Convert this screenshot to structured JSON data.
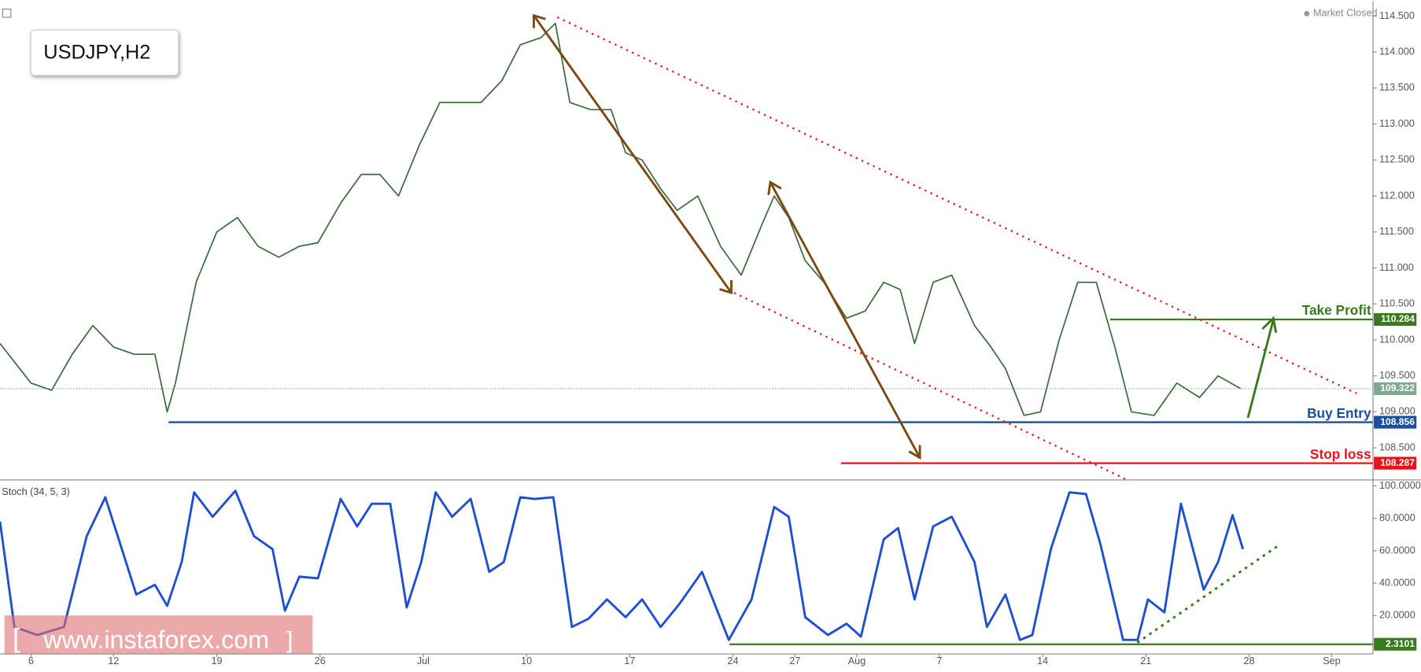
{
  "watermark": "www.instaforex.com",
  "chart_data": [
    {
      "type": "line",
      "title": "USDJPY,H2",
      "status": "Market Closed",
      "color": "#3d6b3d",
      "x": [
        -1.5,
        0,
        1.0,
        2.0,
        3.0,
        4.0,
        5.0,
        6.0,
        6.6,
        7.0,
        8.0,
        9.0,
        10.0,
        11.0,
        12.0,
        13.0,
        13.9,
        15.0,
        16.0,
        16.9,
        17.8,
        18.8,
        19.8,
        20.8,
        21.8,
        22.8,
        23.7,
        24.7,
        25.4,
        26.1,
        27.1,
        28.1,
        28.8,
        29.6,
        30.5,
        31.3,
        32.3,
        33.4,
        34.4,
        35.4,
        36.0,
        36.7,
        37.5,
        38.4,
        39.5,
        40.4,
        41.3,
        42.1,
        42.8,
        43.7,
        44.6,
        45.7,
        46.5,
        47.2,
        48.1,
        48.9,
        49.8,
        50.7,
        51.6,
        52.5,
        53.3,
        54.4,
        55.5,
        56.6,
        57.5,
        58.6
      ],
      "series": [
        {
          "name": "USDJPY",
          "color": "#3d6b3d",
          "values": [
            109.95,
            109.4,
            109.3,
            109.8,
            110.2,
            109.9,
            109.8,
            109.8,
            109.0,
            109.4,
            110.8,
            111.5,
            111.7,
            111.3,
            111.15,
            111.3,
            111.35,
            111.9,
            112.3,
            112.3,
            112.0,
            112.7,
            113.3,
            113.3,
            113.3,
            113.6,
            114.1,
            114.2,
            114.4,
            113.3,
            113.2,
            113.2,
            112.6,
            112.5,
            112.1,
            111.8,
            112.0,
            111.3,
            110.9,
            111.6,
            112.0,
            111.7,
            111.1,
            110.8,
            110.3,
            110.4,
            110.8,
            110.7,
            109.95,
            110.8,
            110.9,
            110.2,
            109.9,
            109.6,
            108.95,
            109.0,
            110.0,
            110.8,
            110.8,
            109.9,
            109.0,
            108.95,
            109.4,
            109.2,
            109.5,
            109.322
          ]
        }
      ],
      "xlim": [
        -1.5,
        65
      ],
      "ylim": [
        108.06,
        114.71
      ],
      "yticks": [
        {
          "value": 108.5,
          "label": "108.500"
        },
        {
          "value": 109,
          "label": "109.000"
        },
        {
          "value": 109.5,
          "label": "109.500"
        },
        {
          "value": 110,
          "label": "110.000"
        },
        {
          "value": 110.5,
          "label": "110.500"
        },
        {
          "value": 111,
          "label": "111.000"
        },
        {
          "value": 111.5,
          "label": "111.500"
        },
        {
          "value": 112,
          "label": "112.000"
        },
        {
          "value": 112.5,
          "label": "112.500"
        },
        {
          "value": 113,
          "label": "113.000"
        },
        {
          "value": 113.5,
          "label": "113.500"
        },
        {
          "value": 114,
          "label": "114.000"
        },
        {
          "value": 114.5,
          "label": "114.500"
        }
      ],
      "current_price": 109.322,
      "levels": [
        {
          "label": "Take Profit",
          "value": 110.284,
          "color": "#3a7a1e"
        },
        {
          "label": "Buy Entry",
          "value": 108.856,
          "color": "#1a4fa0"
        },
        {
          "label": "Stop loss",
          "value": 108.287,
          "color": "#e8141a"
        }
      ]
    },
    {
      "type": "line",
      "title": "Stoch (34, 5, 3)",
      "x": [
        -1.5,
        -0.8,
        0.3,
        1.6,
        2.7,
        3.6,
        4.2,
        5.1,
        6.0,
        6.6,
        7.3,
        7.9,
        8.8,
        9.9,
        10.8,
        11.7,
        12.3,
        13.0,
        13.9,
        15.0,
        15.8,
        16.5,
        17.4,
        18.2,
        18.9,
        19.6,
        20.4,
        21.3,
        22.2,
        22.9,
        23.7,
        24.4,
        25.3,
        26.2,
        27.0,
        27.9,
        28.8,
        29.6,
        30.5,
        31.4,
        32.5,
        33.8,
        34.9,
        36.0,
        36.7,
        37.5,
        38.6,
        39.5,
        40.2,
        41.3,
        42.0,
        42.8,
        43.7,
        44.6,
        45.7,
        46.3,
        47.2,
        47.9,
        48.5,
        49.4,
        50.3,
        51.1,
        51.8,
        52.9,
        53.6,
        54.1,
        54.9,
        55.7,
        56.8,
        57.5,
        58.2,
        58.7
      ],
      "series": [
        {
          "name": "Stoch",
          "color": "#1f4fd1",
          "values": [
            78,
            13,
            8,
            13,
            69,
            93,
            69,
            33,
            39,
            26,
            53,
            96,
            81,
            97,
            69,
            61,
            23,
            44,
            43,
            92,
            75,
            89,
            89,
            25,
            53,
            96,
            81,
            92,
            47,
            53,
            93,
            92,
            93,
            13,
            18,
            30,
            19,
            30,
            13,
            27,
            47,
            5,
            30,
            87,
            81,
            19,
            8,
            15,
            7,
            67,
            74,
            30,
            75,
            81,
            53,
            13,
            33,
            5,
            8,
            61,
            96,
            95,
            64,
            5,
            5,
            30,
            22,
            89,
            36,
            53,
            82,
            61
          ]
        }
      ],
      "xlim": [
        -1.5,
        65
      ],
      "ylim": [
        -3.4,
        103.4
      ],
      "yticks": [
        {
          "value": 20,
          "label": "20.0000"
        },
        {
          "value": 40,
          "label": "40.0000"
        },
        {
          "value": 60,
          "label": "60.0000"
        },
        {
          "value": 80,
          "label": "80.0000"
        },
        {
          "value": 100,
          "label": "100.0000"
        }
      ],
      "level": {
        "value": 2.3101,
        "color": "#3a7a1e"
      },
      "xticks": [
        {
          "value": 0,
          "label": "6"
        },
        {
          "value": 4,
          "label": "12"
        },
        {
          "value": 9,
          "label": "19"
        },
        {
          "value": 14,
          "label": "26"
        },
        {
          "value": 19,
          "label": "Jul"
        },
        {
          "value": 24,
          "label": "10"
        },
        {
          "value": 29,
          "label": "17"
        },
        {
          "value": 34,
          "label": "24"
        },
        {
          "value": 37,
          "label": "27"
        },
        {
          "value": 40,
          "label": "Aug"
        },
        {
          "value": 44,
          "label": "7"
        },
        {
          "value": 49,
          "label": "14"
        },
        {
          "value": 54,
          "label": "21"
        },
        {
          "value": 59,
          "label": "28"
        },
        {
          "value": 63,
          "label": "Sep"
        }
      ]
    }
  ]
}
